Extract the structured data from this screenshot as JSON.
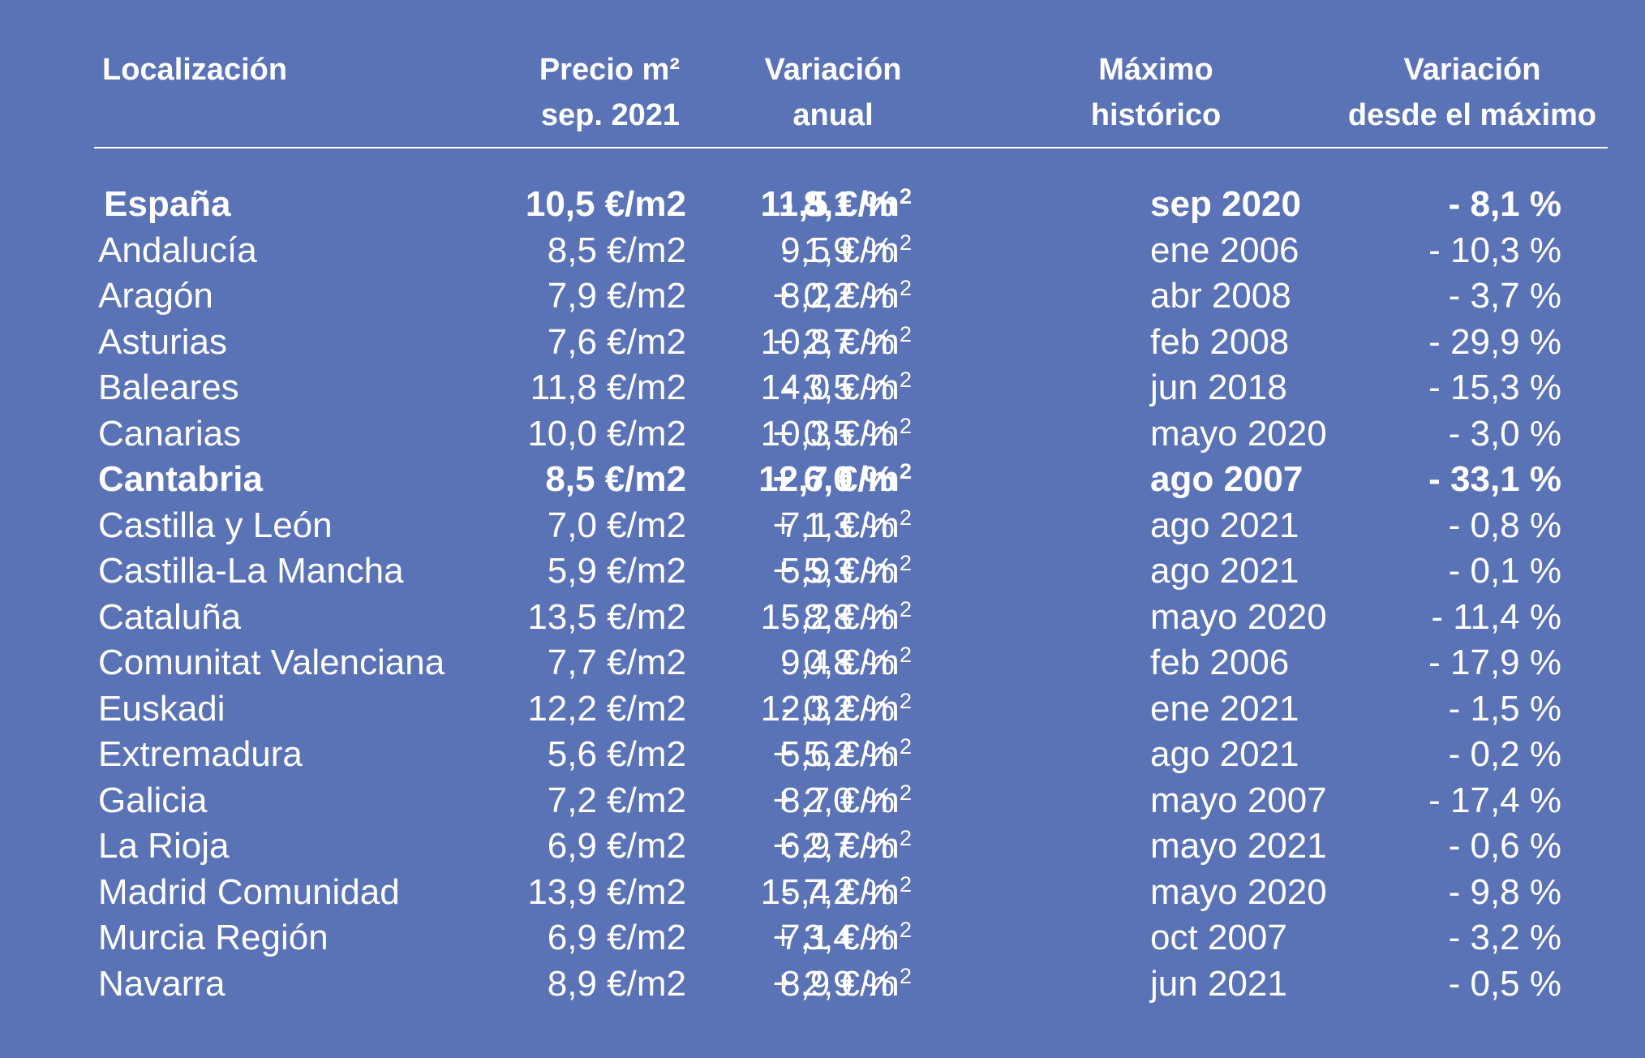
{
  "header": {
    "location": "Localización",
    "price_line1": "Precio m²",
    "price_line2": "sep. 2021",
    "annual_line1": "Variación",
    "annual_line2": "anual",
    "max_line1": "Máximo",
    "max_line2": "histórico",
    "varmax_line1": "Variación",
    "varmax_line2": "desde el máximo"
  },
  "rows": [
    {
      "location": "España",
      "price": "10,5 €/m2",
      "annual": "- 8,1 %",
      "max_value": "11,5 €/m",
      "max_date": "sep 2020",
      "var_max": "- 8,1 %",
      "bold": true
    },
    {
      "location": "Andalucía",
      "price": "8,5 €/m2",
      "annual": "- 1,9 %",
      "max_value": "9,5 €/m",
      "max_date": "ene 2006",
      "var_max": "- 10,3 %",
      "bold": false
    },
    {
      "location": "Aragón",
      "price": "7,9 €/m2",
      "annual": "+ 0,2 %",
      "max_value": "8,2 €/m",
      "max_date": "abr 2008",
      "var_max": "- 3,7 %",
      "bold": false
    },
    {
      "location": "Asturias",
      "price": "7,6 €/m2",
      "annual": "+ 2,7 %",
      "max_value": "10,8 €/m",
      "max_date": "feb 2008",
      "var_max": "- 29,9 %",
      "bold": false
    },
    {
      "location": "Baleares",
      "price": "11,8 €/m2",
      "annual": "- 3,5 %",
      "max_value": "14,0 €/m",
      "max_date": "jun 2018",
      "var_max": "- 15,3 %",
      "bold": false
    },
    {
      "location": "Canarias",
      "price": "10,0 €/m2",
      "annual": "+ 0,5 %",
      "max_value": "10,3 €/m",
      "max_date": "mayo 2020",
      "var_max": "- 3,0 %",
      "bold": false
    },
    {
      "location": "Cantabria",
      "price": "8,5 €/m2",
      "annual": "+ 6,0 %",
      "max_value": "12,7 €/m",
      "max_date": "ago 2007",
      "var_max": "- 33,1 %",
      "bold": true
    },
    {
      "location": "Castilla y León",
      "price": "7,0 €/m2",
      "annual": "+ 1,3 %",
      "max_value": "7,1 €/m",
      "max_date": "ago 2021",
      "var_max": "- 0,8 %",
      "bold": false
    },
    {
      "location": "Castilla-La Mancha",
      "price": "5,9 €/m2",
      "annual": "+ 5,3 %",
      "max_value": "5,9 €/m",
      "max_date": "ago 2021",
      "var_max": "- 0,1 %",
      "bold": false
    },
    {
      "location": "Cataluña",
      "price": "13,5 €/m2",
      "annual": "- 8,8 %",
      "max_value": "15,2 €/m",
      "max_date": "mayo 2020",
      "var_max": "- 11,4 %",
      "bold": false
    },
    {
      "location": "Comunitat Valenciana",
      "price": "7,7 €/m2",
      "annual": "- 0,8 %",
      "max_value": "9,4 €/m",
      "max_date": "feb 2006",
      "var_max": "- 17,9 %",
      "bold": false
    },
    {
      "location": "Euskadi",
      "price": "12,2 €/m2",
      "annual": "- 0,2 %",
      "max_value": "12,3 €/m",
      "max_date": "ene 2021",
      "var_max": "- 1,5 %",
      "bold": false
    },
    {
      "location": "Extremadura",
      "price": "5,6 €/m2",
      "annual": "+ 5,2 %",
      "max_value": "5,6 €/m",
      "max_date": "ago 2021",
      "var_max": "- 0,2 %",
      "bold": false
    },
    {
      "location": "Galicia",
      "price": "7,2 €/m2",
      "annual": "+ 2,0 %",
      "max_value": "8,7 €/m",
      "max_date": "mayo 2007",
      "var_max": "- 17,4 %",
      "bold": false
    },
    {
      "location": "La Rioja",
      "price": "6,9 €/m2",
      "annual": "+ 2,7 %",
      "max_value": "6,9 €/m",
      "max_date": "mayo 2021",
      "var_max": "- 0,6 %",
      "bold": false
    },
    {
      "location": "Madrid Comunidad",
      "price": "13,9 €/m2",
      "annual": "- 7,2 %",
      "max_value": "15,4 €/m",
      "max_date": "mayo 2020",
      "var_max": "- 9,8 %",
      "bold": false
    },
    {
      "location": "Murcia Región",
      "price": "6,9 €/m2",
      "annual": "+ 3,4 %",
      "max_value": "7,1 €/m",
      "max_date": "oct 2007",
      "var_max": "- 3,2 %",
      "bold": false
    },
    {
      "location": "Navarra",
      "price": "8,9 €/m2",
      "annual": "+ 2,9 %",
      "max_value": "8,9 €/m",
      "max_date": "jun 2021",
      "var_max": "- 0,5 %",
      "bold": false
    }
  ],
  "colors": {
    "background": "#5a72b6",
    "text": "#ffffff"
  }
}
